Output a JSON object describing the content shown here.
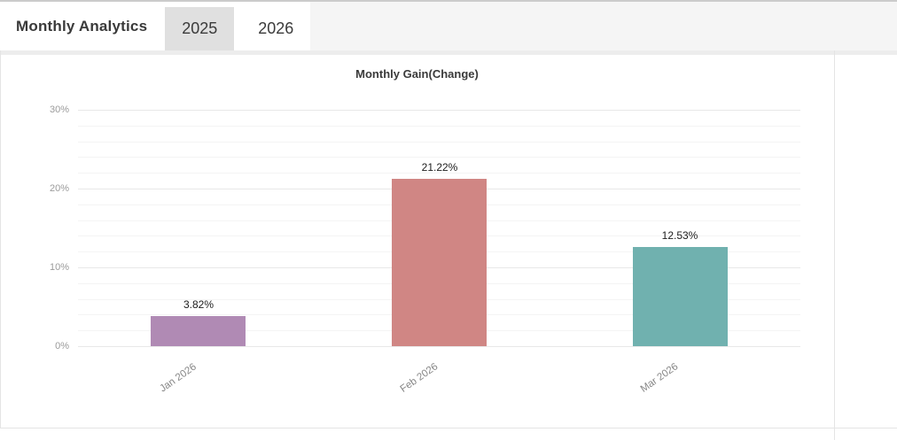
{
  "header": {
    "title": "Monthly Analytics",
    "tabs": [
      {
        "label": "2025",
        "active": false
      },
      {
        "label": "2026",
        "active": true
      }
    ]
  },
  "colors": {
    "tab_inactive_bg": "#e0e0e0",
    "header_fill": "#f5f5f5",
    "divider": "#e4e4e4",
    "grid_major": "#e8e8e8",
    "grid_minor": "#f4f4f4"
  },
  "chart_data": {
    "type": "bar",
    "title": "Monthly Gain(Change)",
    "categories": [
      "Jan 2026",
      "Feb 2026",
      "Mar 2026"
    ],
    "values": [
      3.82,
      21.22,
      12.53
    ],
    "value_labels": [
      "3.82%",
      "21.22%",
      "12.53%"
    ],
    "bar_colors": [
      "#b08ab4",
      "#d08684",
      "#70b1af"
    ],
    "xlabel": "",
    "ylabel": "",
    "ylim": [
      0,
      30
    ],
    "yticks": [
      0,
      10,
      20,
      30
    ],
    "ytick_labels": [
      "0%",
      "10%",
      "20%",
      "30%"
    ],
    "minor_grid_step": 2,
    "grid": true,
    "legend": "none",
    "x_label_rotation_deg": -35
  }
}
